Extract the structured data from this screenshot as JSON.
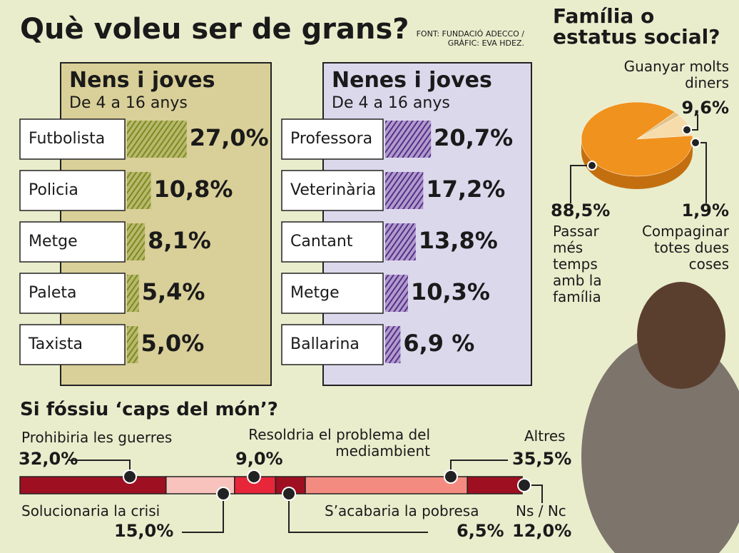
{
  "page": {
    "title": "Què voleu ser de grans?",
    "source": "FONT: FUNDACIÓ ADECCO / GRÀFIC: EVA HDEZ."
  },
  "chart_data": [
    {
      "type": "bar",
      "title": "Nens i joves",
      "subtitle": "De 4 a 16 anys",
      "color": "#7b8b1f",
      "categories": [
        "Futbolista",
        "Policia",
        "Metge",
        "Paleta",
        "Taxista"
      ],
      "values": [
        27.0,
        10.8,
        8.1,
        5.4,
        5.0
      ],
      "value_labels": [
        "27,0%",
        "10,8%",
        "8,1%",
        "5,4%",
        "5,0%"
      ]
    },
    {
      "type": "bar",
      "title": "Nenes i joves",
      "subtitle": "De 4 a 16 anys",
      "color": "#5a2d8c",
      "categories": [
        "Professora",
        "Veterinària",
        "Cantant",
        "Metge",
        "Ballarina"
      ],
      "values": [
        20.7,
        17.2,
        13.8,
        10.3,
        6.9
      ],
      "value_labels": [
        "20,7%",
        "17,2%",
        "13,8%",
        "10,3%",
        "6,9 %"
      ]
    },
    {
      "type": "pie",
      "title": "Família o estatus social?",
      "categories": [
        "Guanyar molts diners",
        "Passar més temps amb la família",
        "Compaginar totes dues coses"
      ],
      "values": [
        9.6,
        88.5,
        1.9
      ],
      "value_labels": [
        "9,6%",
        "88,5%",
        "1,9%"
      ],
      "colors": [
        "#f6dcaa",
        "#f0921e",
        "#e2c38a"
      ]
    },
    {
      "type": "stacked_bar",
      "title": "Si fóssiu ‘caps del món’?",
      "categories": [
        "Prohibiria les guerres",
        "Solucionaria la crisi",
        "Resoldria el problema del mediambient",
        "S’acabaria la pobresa",
        "Altres",
        "Ns / Nc"
      ],
      "values": [
        32.0,
        15.0,
        9.0,
        6.5,
        35.5,
        12.0
      ],
      "value_labels": [
        "32,0%",
        "15,0%",
        "9,0%",
        "6,5%",
        "35,5%",
        "12,0%"
      ],
      "colors": [
        "#9e0f22",
        "#f8c3bd",
        "#e8263a",
        "#9e0f22",
        "#f48b80",
        "#9e0f22"
      ]
    }
  ]
}
